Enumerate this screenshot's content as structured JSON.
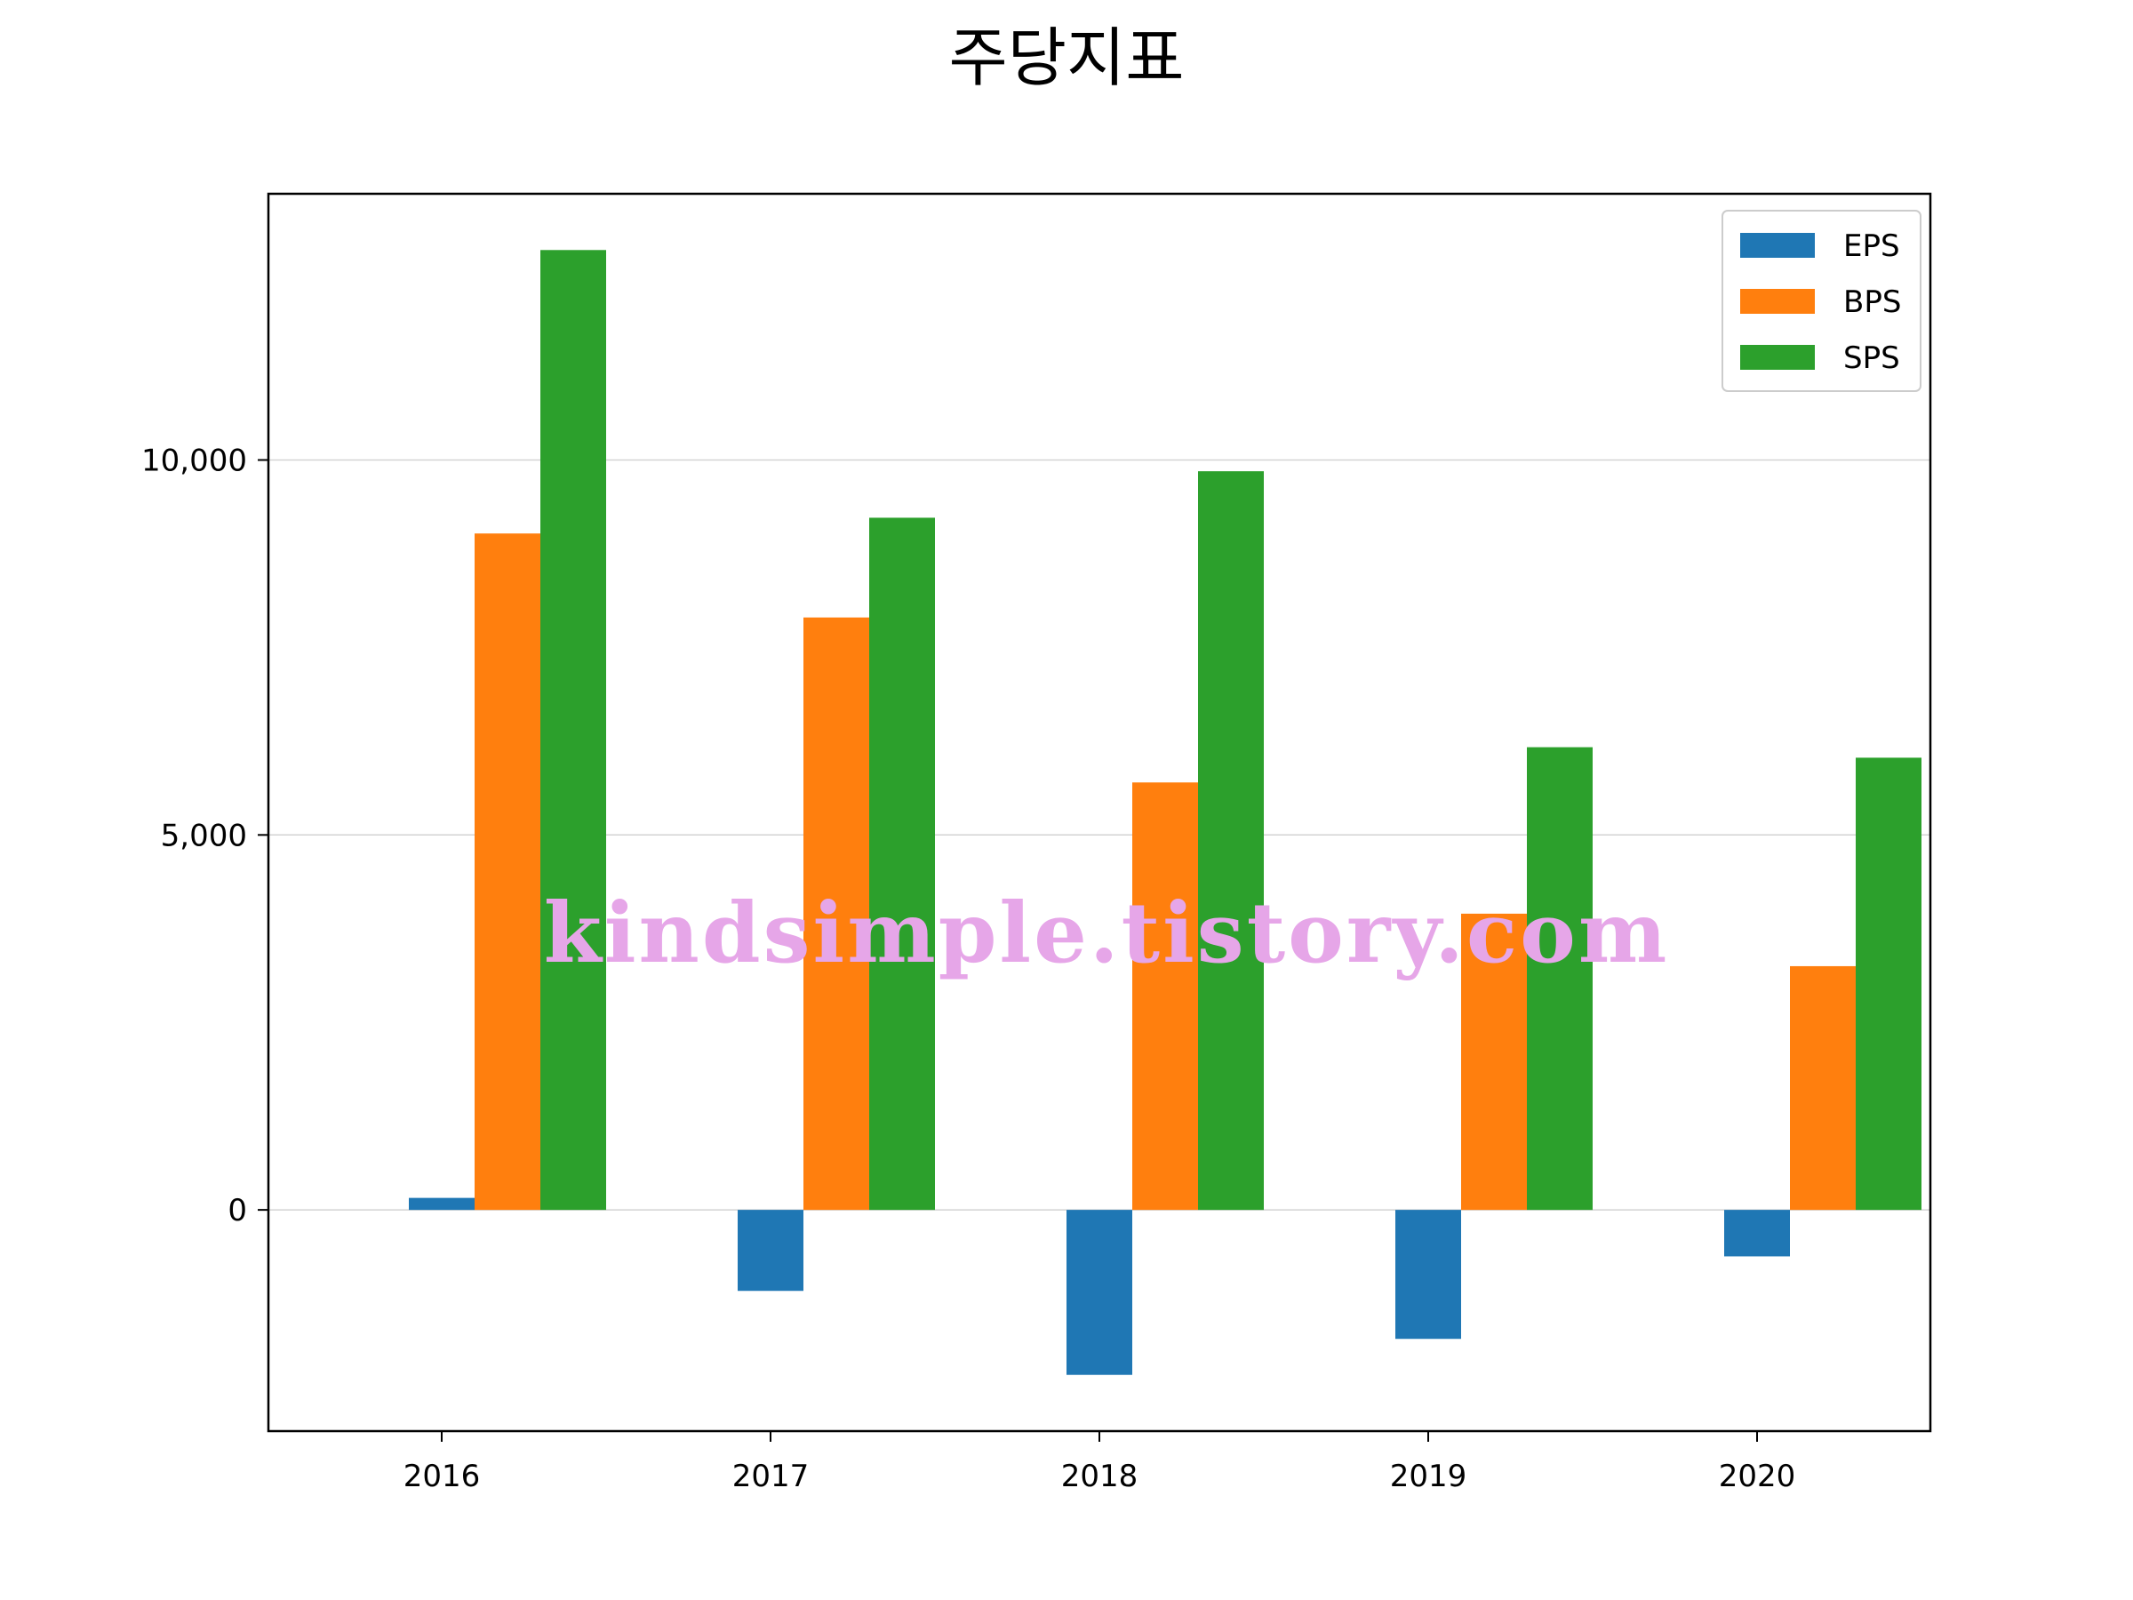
{
  "colors": {
    "eps": "#1f77b4",
    "bps": "#ff7f0e",
    "sps": "#2ca02c",
    "grid": "#d3d3d3",
    "watermark": "#e6a6e8"
  },
  "watermark": {
    "text": "kindsimple.tistory.com"
  },
  "chart_data": {
    "type": "bar",
    "title": "주당지표",
    "xlabel": "",
    "ylabel": "",
    "categories": [
      "2016",
      "2017",
      "2018",
      "2019",
      "2020"
    ],
    "series": [
      {
        "name": "EPS",
        "values": [
          160,
          -1080,
          -2200,
          -1720,
          -620
        ]
      },
      {
        "name": "BPS",
        "values": [
          9020,
          7900,
          5700,
          3950,
          3250
        ]
      },
      {
        "name": "SPS",
        "values": [
          12800,
          9230,
          9850,
          6170,
          6030
        ]
      }
    ],
    "ylim": [
      -2950,
      13550
    ],
    "yticks": [
      0,
      5000,
      10000
    ],
    "ytick_labels": [
      "0",
      "5,000",
      "10,000"
    ],
    "grid": "y-major",
    "legend": "top-right"
  }
}
